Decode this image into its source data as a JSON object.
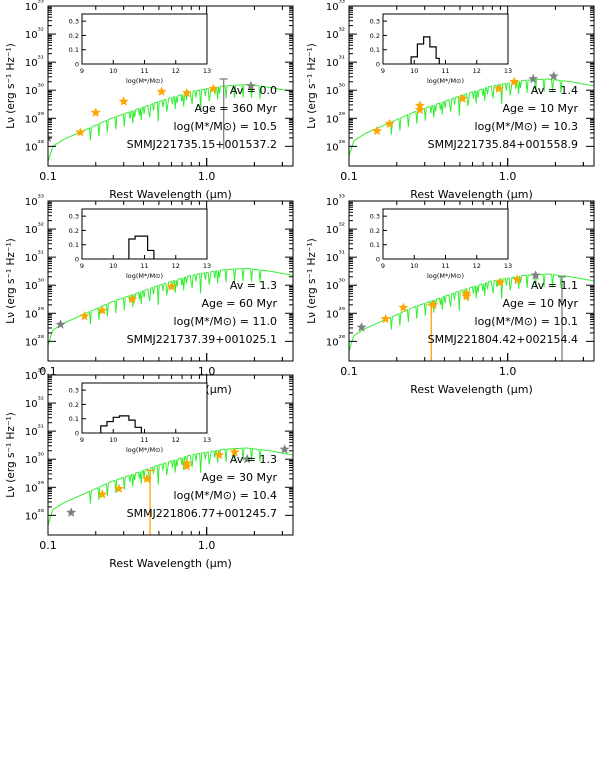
{
  "chart_data": [
    {
      "type": "scatter",
      "xlabel": "Rest Wavelength (μm)",
      "ylabel": "Lν (erg s⁻¹ Hz⁻¹)",
      "xscale": "log",
      "yscale": "log",
      "xlim": [
        0.1,
        3.5
      ],
      "ylim_log10": [
        27.3,
        33.0
      ],
      "xticks": [
        "0.1",
        "1.0"
      ],
      "yticks": [
        "10²⁸",
        "10²⁹",
        "10³⁰",
        "10³¹",
        "10³²",
        "10³³"
      ],
      "annotations": [
        "Av = 0.0",
        "Age = 360 Myr",
        "log(M*/M⊙) = 10.5",
        "SMMJ221735.15+001537.2"
      ],
      "template_norm_log10": 30.2,
      "photometry_log10": [
        {
          "x": 0.1,
          "y": 28.3,
          "color": "grey"
        },
        {
          "x": 0.16,
          "y": 28.5,
          "color": "orange"
        },
        {
          "x": 0.2,
          "y": 29.2,
          "color": "orange"
        },
        {
          "x": 0.3,
          "y": 29.6,
          "color": "orange"
        },
        {
          "x": 0.52,
          "y": 29.95,
          "color": "orange"
        },
        {
          "x": 0.75,
          "y": 29.9,
          "color": "orange"
        },
        {
          "x": 1.1,
          "y": 30.05,
          "color": "orange"
        },
        {
          "x": 1.9,
          "y": 30.15,
          "color": "grey"
        }
      ],
      "errorbars_log10": [
        {
          "x": 1.28,
          "ylow": 27.9,
          "yhigh": 30.4,
          "color": "grey"
        }
      ],
      "inset": {
        "xticks": [
          "9",
          "10",
          "11",
          "12",
          "13"
        ],
        "yticks": [
          "0",
          "0.1",
          "0.2",
          "0.3"
        ],
        "xlabel": "log(M*/M⊙)",
        "histogram": []
      }
    },
    {
      "type": "scatter",
      "xlabel": "Rest Wavelength (μm)",
      "ylabel": "Lν (erg s⁻¹ Hz⁻¹)",
      "xscale": "log",
      "yscale": "log",
      "xlim": [
        0.1,
        3.5
      ],
      "ylim_log10": [
        27.3,
        33.0
      ],
      "xticks": [
        "0.1",
        "1.0"
      ],
      "yticks": [
        "10²⁸",
        "10²⁹",
        "10³⁰",
        "10³¹",
        "10³²",
        "10³³"
      ],
      "annotations": [
        "Av = 1.4",
        "Age = 10 Myr",
        "log(M*/M⊙) = 10.3",
        "SMMJ221735.84+001558.9"
      ],
      "template_norm_log10": 30.4,
      "photometry_log10": [
        {
          "x": 0.15,
          "y": 28.55,
          "color": "orange"
        },
        {
          "x": 0.18,
          "y": 28.8,
          "color": "orange"
        },
        {
          "x": 0.28,
          "y": 29.3,
          "color": "orange"
        },
        {
          "x": 0.28,
          "y": 29.45,
          "color": "orange"
        },
        {
          "x": 0.52,
          "y": 29.7,
          "color": "orange"
        },
        {
          "x": 0.88,
          "y": 30.05,
          "color": "orange"
        },
        {
          "x": 1.1,
          "y": 30.3,
          "color": "orange"
        },
        {
          "x": 1.45,
          "y": 30.4,
          "color": "grey"
        },
        {
          "x": 1.95,
          "y": 30.5,
          "color": "grey"
        }
      ],
      "errorbars_log10": [],
      "inset": {
        "xticks": [
          "9",
          "10",
          "11",
          "12",
          "13"
        ],
        "yticks": [
          "0",
          "0.1",
          "0.2",
          "0.3"
        ],
        "xlabel": "log(M*/M⊙)",
        "histogram": [
          {
            "bin": [
              9.9,
              10.1
            ],
            "value": 0.05
          },
          {
            "bin": [
              10.1,
              10.3
            ],
            "value": 0.14
          },
          {
            "bin": [
              10.3,
              10.5
            ],
            "value": 0.19
          },
          {
            "bin": [
              10.5,
              10.7
            ],
            "value": 0.12
          },
          {
            "bin": [
              10.7,
              10.8
            ],
            "value": 0.04
          }
        ]
      }
    },
    {
      "type": "scatter",
      "xlabel": "Rest Wavelength (μm)",
      "ylabel": "Lν (erg s⁻¹ Hz⁻¹)",
      "xscale": "log",
      "yscale": "log",
      "xlim": [
        0.1,
        3.5
      ],
      "ylim_log10": [
        27.3,
        33.0
      ],
      "xticks": [
        "0.1",
        "1.0"
      ],
      "yticks": [
        "10²⁸",
        "10²⁹",
        "10³⁰",
        "10³¹",
        "10³²",
        "10³³"
      ],
      "annotations": [
        "Av = 1.3",
        "Age = 60 Myr",
        "log(M*/M⊙) = 11.0",
        "SMMJ221737.39+001025.1"
      ],
      "template_norm_log10": 30.6,
      "photometry_log10": [
        {
          "x": 0.12,
          "y": 28.6,
          "color": "grey"
        },
        {
          "x": 0.17,
          "y": 28.9,
          "color": "orange"
        },
        {
          "x": 0.22,
          "y": 29.1,
          "color": "orange"
        },
        {
          "x": 0.34,
          "y": 29.5,
          "color": "orange"
        },
        {
          "x": 0.6,
          "y": 29.95,
          "color": "orange"
        }
      ],
      "errorbars_log10": [],
      "inset": {
        "xticks": [
          "9",
          "10",
          "11",
          "12",
          "13"
        ],
        "yticks": [
          "0",
          "0.1",
          "0.2",
          "0.3"
        ],
        "xlabel": "log(M*/M⊙)",
        "histogram": [
          {
            "bin": [
              10.5,
              10.7
            ],
            "value": 0.14
          },
          {
            "bin": [
              10.7,
              11.1
            ],
            "value": 0.16
          },
          {
            "bin": [
              11.1,
              11.3
            ],
            "value": 0.06
          }
        ]
      }
    },
    {
      "type": "scatter",
      "xlabel": "Rest Wavelength (μm)",
      "ylabel": "Lν (erg s⁻¹ Hz⁻¹)",
      "xscale": "log",
      "yscale": "log",
      "xlim": [
        0.1,
        3.5
      ],
      "ylim_log10": [
        27.3,
        33.0
      ],
      "xticks": [
        "0.1",
        "1.0"
      ],
      "yticks": [
        "10²⁸",
        "10²⁹",
        "10³⁰",
        "10³¹",
        "10³²",
        "10³³"
      ],
      "annotations": [
        "Av = 1.1",
        "Age = 10 Myr",
        "log(M*/M⊙) = 10.1",
        "SMMJ221804.42+002154.4"
      ],
      "template_norm_log10": 30.4,
      "photometry_log10": [
        {
          "x": 0.12,
          "y": 28.5,
          "color": "grey"
        },
        {
          "x": 0.17,
          "y": 28.8,
          "color": "orange"
        },
        {
          "x": 0.22,
          "y": 29.2,
          "color": "orange"
        },
        {
          "x": 0.34,
          "y": 29.3,
          "color": "orange"
        },
        {
          "x": 0.55,
          "y": 29.7,
          "color": "orange"
        },
        {
          "x": 0.55,
          "y": 29.6,
          "color": "orange"
        },
        {
          "x": 0.9,
          "y": 30.1,
          "color": "orange"
        },
        {
          "x": 1.15,
          "y": 30.2,
          "color": "orange"
        },
        {
          "x": 1.5,
          "y": 30.35,
          "color": "grey"
        }
      ],
      "errorbars_log10": [
        {
          "x": 0.33,
          "ylow": 27.3,
          "yhigh": 29.3,
          "color": "orange"
        },
        {
          "x": 2.2,
          "ylow": 27.3,
          "yhigh": 30.3,
          "color": "grey"
        }
      ],
      "inset": {
        "xticks": [
          "9",
          "10",
          "11",
          "12",
          "13"
        ],
        "yticks": [
          "0",
          "0.1",
          "0.2",
          "0.3"
        ],
        "xlabel": "log(M*/M⊙)",
        "histogram": []
      }
    },
    {
      "type": "scatter",
      "xlabel": "Rest Wavelength (μm)",
      "ylabel": "Lν (erg s⁻¹ Hz⁻¹)",
      "xscale": "log",
      "yscale": "log",
      "xlim": [
        0.1,
        3.5
      ],
      "ylim_log10": [
        27.3,
        33.0
      ],
      "xticks": [
        "0.1",
        "1.0"
      ],
      "yticks": [
        "10²⁸",
        "10²⁹",
        "10³⁰",
        "10³¹",
        "10³²",
        "10³³"
      ],
      "annotations": [
        "Av = 1.3",
        "Age = 30 Myr",
        "log(M*/M⊙) = 10.4",
        "SMMJ221806.77+001245.7"
      ],
      "template_norm_log10": 30.4,
      "photometry_log10": [
        {
          "x": 0.14,
          "y": 28.1,
          "color": "grey"
        },
        {
          "x": 0.22,
          "y": 28.75,
          "color": "orange"
        },
        {
          "x": 0.28,
          "y": 28.95,
          "color": "orange"
        },
        {
          "x": 0.42,
          "y": 29.3,
          "color": "orange"
        },
        {
          "x": 0.75,
          "y": 29.85,
          "color": "orange"
        },
        {
          "x": 0.75,
          "y": 29.75,
          "color": "orange"
        },
        {
          "x": 1.2,
          "y": 30.15,
          "color": "orange"
        },
        {
          "x": 1.5,
          "y": 30.25,
          "color": "orange"
        },
        {
          "x": 1.8,
          "y": 30.0,
          "color": "grey"
        },
        {
          "x": 3.1,
          "y": 30.35,
          "color": "grey"
        }
      ],
      "errorbars_log10": [
        {
          "x": 0.44,
          "ylow": 27.3,
          "yhigh": 29.6,
          "color": "orange"
        }
      ],
      "inset": {
        "xticks": [
          "9",
          "10",
          "11",
          "12",
          "13"
        ],
        "yticks": [
          "0",
          "0.1",
          "0.2",
          "0.3"
        ],
        "xlabel": "log(M*/M⊙)",
        "histogram": [
          {
            "bin": [
              9.6,
              9.8
            ],
            "value": 0.05
          },
          {
            "bin": [
              9.8,
              10.0
            ],
            "value": 0.08
          },
          {
            "bin": [
              10.0,
              10.2
            ],
            "value": 0.11
          },
          {
            "bin": [
              10.2,
              10.5
            ],
            "value": 0.12
          },
          {
            "bin": [
              10.5,
              10.7
            ],
            "value": 0.09
          },
          {
            "bin": [
              10.7,
              10.9
            ],
            "value": 0.04
          }
        ]
      }
    }
  ],
  "colors": {
    "model": "#33ee33",
    "detection": "#ffa500",
    "other": "#808080",
    "axes": "#000000"
  }
}
